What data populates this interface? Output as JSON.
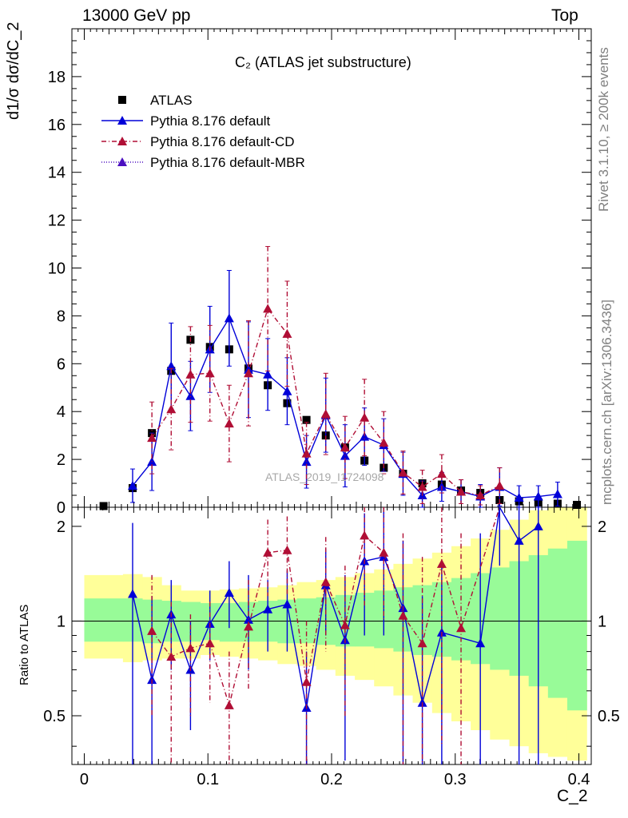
{
  "header": {
    "left": "13000 GeV pp",
    "right": "Top"
  },
  "side_text": {
    "rivet": "Rivet 3.1.10, ≥ 200k events",
    "mcplots": "mcplots.cern.ch [arXiv:1306.3436]"
  },
  "chart_data": [
    {
      "type": "scatter",
      "title": "C₂ (ATLAS jet substructure)",
      "ylabel": "d1/σ dσ/dC_2",
      "watermark": "ATLAS_2019_I1724098",
      "xlim": [
        -0.01,
        0.41
      ],
      "ylim": [
        0,
        20
      ],
      "yticks": [
        0,
        2,
        4,
        6,
        8,
        10,
        12,
        14,
        16,
        18
      ],
      "legend_placement": "top-left",
      "series": [
        {
          "name": "ATLAS",
          "color": "#000000",
          "marker": "square",
          "x": [
            0.0156,
            0.0391,
            0.0547,
            0.0703,
            0.0859,
            0.1016,
            0.1172,
            0.1328,
            0.1484,
            0.1641,
            0.1797,
            0.1953,
            0.2109,
            0.2266,
            0.2422,
            0.2578,
            0.2734,
            0.2891,
            0.3047,
            0.3203,
            0.3359,
            0.3516,
            0.3672,
            0.3828,
            0.3984
          ],
          "y": [
            0.05,
            0.8,
            3.1,
            5.7,
            7.0,
            6.7,
            6.6,
            5.8,
            5.1,
            4.35,
            3.65,
            3.0,
            2.5,
            1.95,
            1.65,
            1.4,
            1.0,
            0.95,
            0.7,
            0.6,
            0.3,
            0.25,
            0.2,
            0.15,
            0.1
          ]
        },
        {
          "name": "Pythia 8.176 default",
          "color": "#0000d8",
          "line": "solid",
          "marker": "triangle",
          "x": [
            0.0391,
            0.0547,
            0.0703,
            0.0859,
            0.1016,
            0.1172,
            0.1328,
            0.1484,
            0.1641,
            0.1797,
            0.1953,
            0.2109,
            0.2266,
            0.2422,
            0.2578,
            0.2734,
            0.2891,
            0.3047,
            0.3203,
            0.3359,
            0.3516,
            0.3672,
            0.3828
          ],
          "y": [
            0.9,
            1.9,
            5.9,
            4.65,
            6.6,
            7.9,
            5.75,
            5.55,
            4.85,
            1.9,
            3.85,
            2.15,
            2.95,
            2.6,
            1.4,
            0.5,
            0.85,
            0.65,
            0.45,
            0.85,
            0.4,
            0.45,
            0.55
          ],
          "yerr": [
            0.7,
            1.2,
            1.8,
            1.45,
            1.8,
            2.0,
            2.0,
            1.5,
            1.4,
            1.1,
            1.55,
            1.3,
            1.2,
            1.1,
            0.9,
            0.6,
            0.6,
            0.5,
            0.5,
            0.8,
            0.5,
            0.45,
            0.5
          ]
        },
        {
          "name": "Pythia 8.176 default-CD",
          "color": "#b00e35",
          "line": "dash-dot",
          "marker": "triangle",
          "x": [
            0.0547,
            0.0703,
            0.0859,
            0.1016,
            0.1172,
            0.1328,
            0.1484,
            0.1641,
            0.1797,
            0.1953,
            0.2109,
            0.2266,
            0.2422,
            0.2578,
            0.2734,
            0.2891,
            0.3047,
            0.3203,
            0.3359
          ],
          "y": [
            2.9,
            4.1,
            5.55,
            5.6,
            3.5,
            5.6,
            8.3,
            7.25,
            2.25,
            3.9,
            2.5,
            3.75,
            2.7,
            1.45,
            0.85,
            1.4,
            0.65,
            0.5,
            0.9
          ],
          "yerr": [
            1.5,
            1.7,
            2.0,
            2.0,
            1.6,
            2.2,
            2.6,
            2.2,
            1.3,
            1.7,
            1.3,
            1.6,
            1.3,
            0.9,
            0.7,
            0.8,
            0.5,
            0.4,
            0.75
          ]
        },
        {
          "name": "Pythia 8.176 default-MBR",
          "color": "#4b0fc0",
          "line": "dotted",
          "marker": "triangle",
          "x": [],
          "y": []
        }
      ]
    },
    {
      "type": "line",
      "ylabel": "Ratio to ATLAS",
      "xlabel": "C_2",
      "xlim": [
        -0.01,
        0.41
      ],
      "ylim": [
        0.35,
        2.3
      ],
      "yscale": "log",
      "yticks": [
        0.5,
        1,
        2
      ],
      "xticks": [
        0,
        0.1,
        0.2,
        0.3,
        0.4
      ],
      "reference_line": 1,
      "band_edges": [
        0,
        0.0313,
        0.0469,
        0.0625,
        0.0781,
        0.0938,
        0.1094,
        0.125,
        0.1406,
        0.1563,
        0.1719,
        0.1875,
        0.2031,
        0.2188,
        0.2344,
        0.25,
        0.2656,
        0.2813,
        0.2969,
        0.3125,
        0.3281,
        0.3438,
        0.3594,
        0.375,
        0.3906,
        0.4063
      ],
      "green_band": {
        "lo": [
          0.86,
          0.86,
          0.85,
          0.86,
          0.86,
          0.87,
          0.86,
          0.86,
          0.86,
          0.85,
          0.85,
          0.84,
          0.83,
          0.83,
          0.82,
          0.8,
          0.78,
          0.77,
          0.75,
          0.73,
          0.7,
          0.67,
          0.62,
          0.57,
          0.52
        ],
        "hi": [
          1.18,
          1.18,
          1.17,
          1.16,
          1.15,
          1.14,
          1.14,
          1.15,
          1.16,
          1.17,
          1.18,
          1.19,
          1.21,
          1.23,
          1.25,
          1.28,
          1.3,
          1.33,
          1.37,
          1.42,
          1.48,
          1.55,
          1.62,
          1.7,
          1.8
        ]
      },
      "yellow_band": {
        "lo": [
          0.76,
          0.74,
          0.75,
          0.76,
          0.76,
          0.78,
          0.77,
          0.76,
          0.75,
          0.73,
          0.72,
          0.7,
          0.67,
          0.65,
          0.62,
          0.58,
          0.55,
          0.51,
          0.48,
          0.45,
          0.42,
          0.4,
          0.38,
          0.37,
          0.36
        ],
        "hi": [
          1.4,
          1.41,
          1.38,
          1.3,
          1.25,
          1.25,
          1.26,
          1.27,
          1.28,
          1.3,
          1.33,
          1.35,
          1.38,
          1.42,
          1.46,
          1.52,
          1.58,
          1.65,
          1.73,
          1.83,
          1.95,
          2.1,
          2.25,
          2.45,
          2.7
        ]
      },
      "series": [
        {
          "name": "Pythia 8.176 default",
          "color": "#0000d8",
          "x": [
            0.0391,
            0.0547,
            0.0703,
            0.0859,
            0.1016,
            0.1172,
            0.1328,
            0.1484,
            0.1641,
            0.1797,
            0.1953,
            0.2109,
            0.2266,
            0.2422,
            0.2578,
            0.2734,
            0.2891,
            0.3203,
            0.3359,
            0.3516,
            0.3672
          ],
          "y": [
            1.22,
            0.65,
            1.05,
            0.7,
            0.98,
            1.23,
            1.01,
            1.09,
            1.13,
            0.53,
            1.3,
            0.87,
            1.55,
            1.6,
            1.1,
            0.55,
            0.92,
            0.85,
            2.9,
            1.8,
            2.0
          ],
          "ylo": [
            0.2,
            0.2,
            0.7,
            0.45,
            0.75,
            0.95,
            0.7,
            0.8,
            0.8,
            0.25,
            0.9,
            0.36,
            0.9,
            0.9,
            0.2,
            0.2,
            0.3,
            0.2,
            1.5,
            0.2,
            0.2
          ],
          "yhi": [
            2.05,
            1.2,
            1.35,
            1.0,
            1.25,
            1.55,
            1.4,
            1.35,
            1.45,
            0.8,
            1.7,
            1.4,
            2.2,
            2.3,
            1.8,
            1.2,
            1.5,
            1.9,
            3.0,
            3.0,
            3.0
          ]
        },
        {
          "name": "Pythia 8.176 default-CD",
          "color": "#b00e35",
          "x": [
            0.0547,
            0.0703,
            0.0859,
            0.1016,
            0.1172,
            0.1328,
            0.1484,
            0.1641,
            0.1797,
            0.1953,
            0.2109,
            0.2266,
            0.2422,
            0.2578,
            0.2734,
            0.2891,
            0.3047,
            0.3359
          ],
          "y": [
            0.93,
            0.77,
            0.82,
            0.85,
            0.54,
            0.96,
            1.65,
            1.68,
            0.64,
            1.33,
            0.97,
            1.87,
            1.65,
            1.04,
            0.85,
            1.52,
            0.95,
            3.0
          ],
          "ylo": [
            0.5,
            0.3,
            0.5,
            0.55,
            0.3,
            0.6,
            1.2,
            1.2,
            0.3,
            0.8,
            0.5,
            1.1,
            1.0,
            0.2,
            0.2,
            0.4,
            0.3,
            2.5
          ],
          "yhi": [
            1.4,
            1.15,
            1.05,
            1.15,
            0.8,
            1.35,
            2.1,
            2.15,
            1.0,
            1.85,
            1.5,
            2.5,
            2.3,
            1.9,
            1.6,
            2.4,
            1.9,
            3.0
          ]
        }
      ]
    }
  ]
}
